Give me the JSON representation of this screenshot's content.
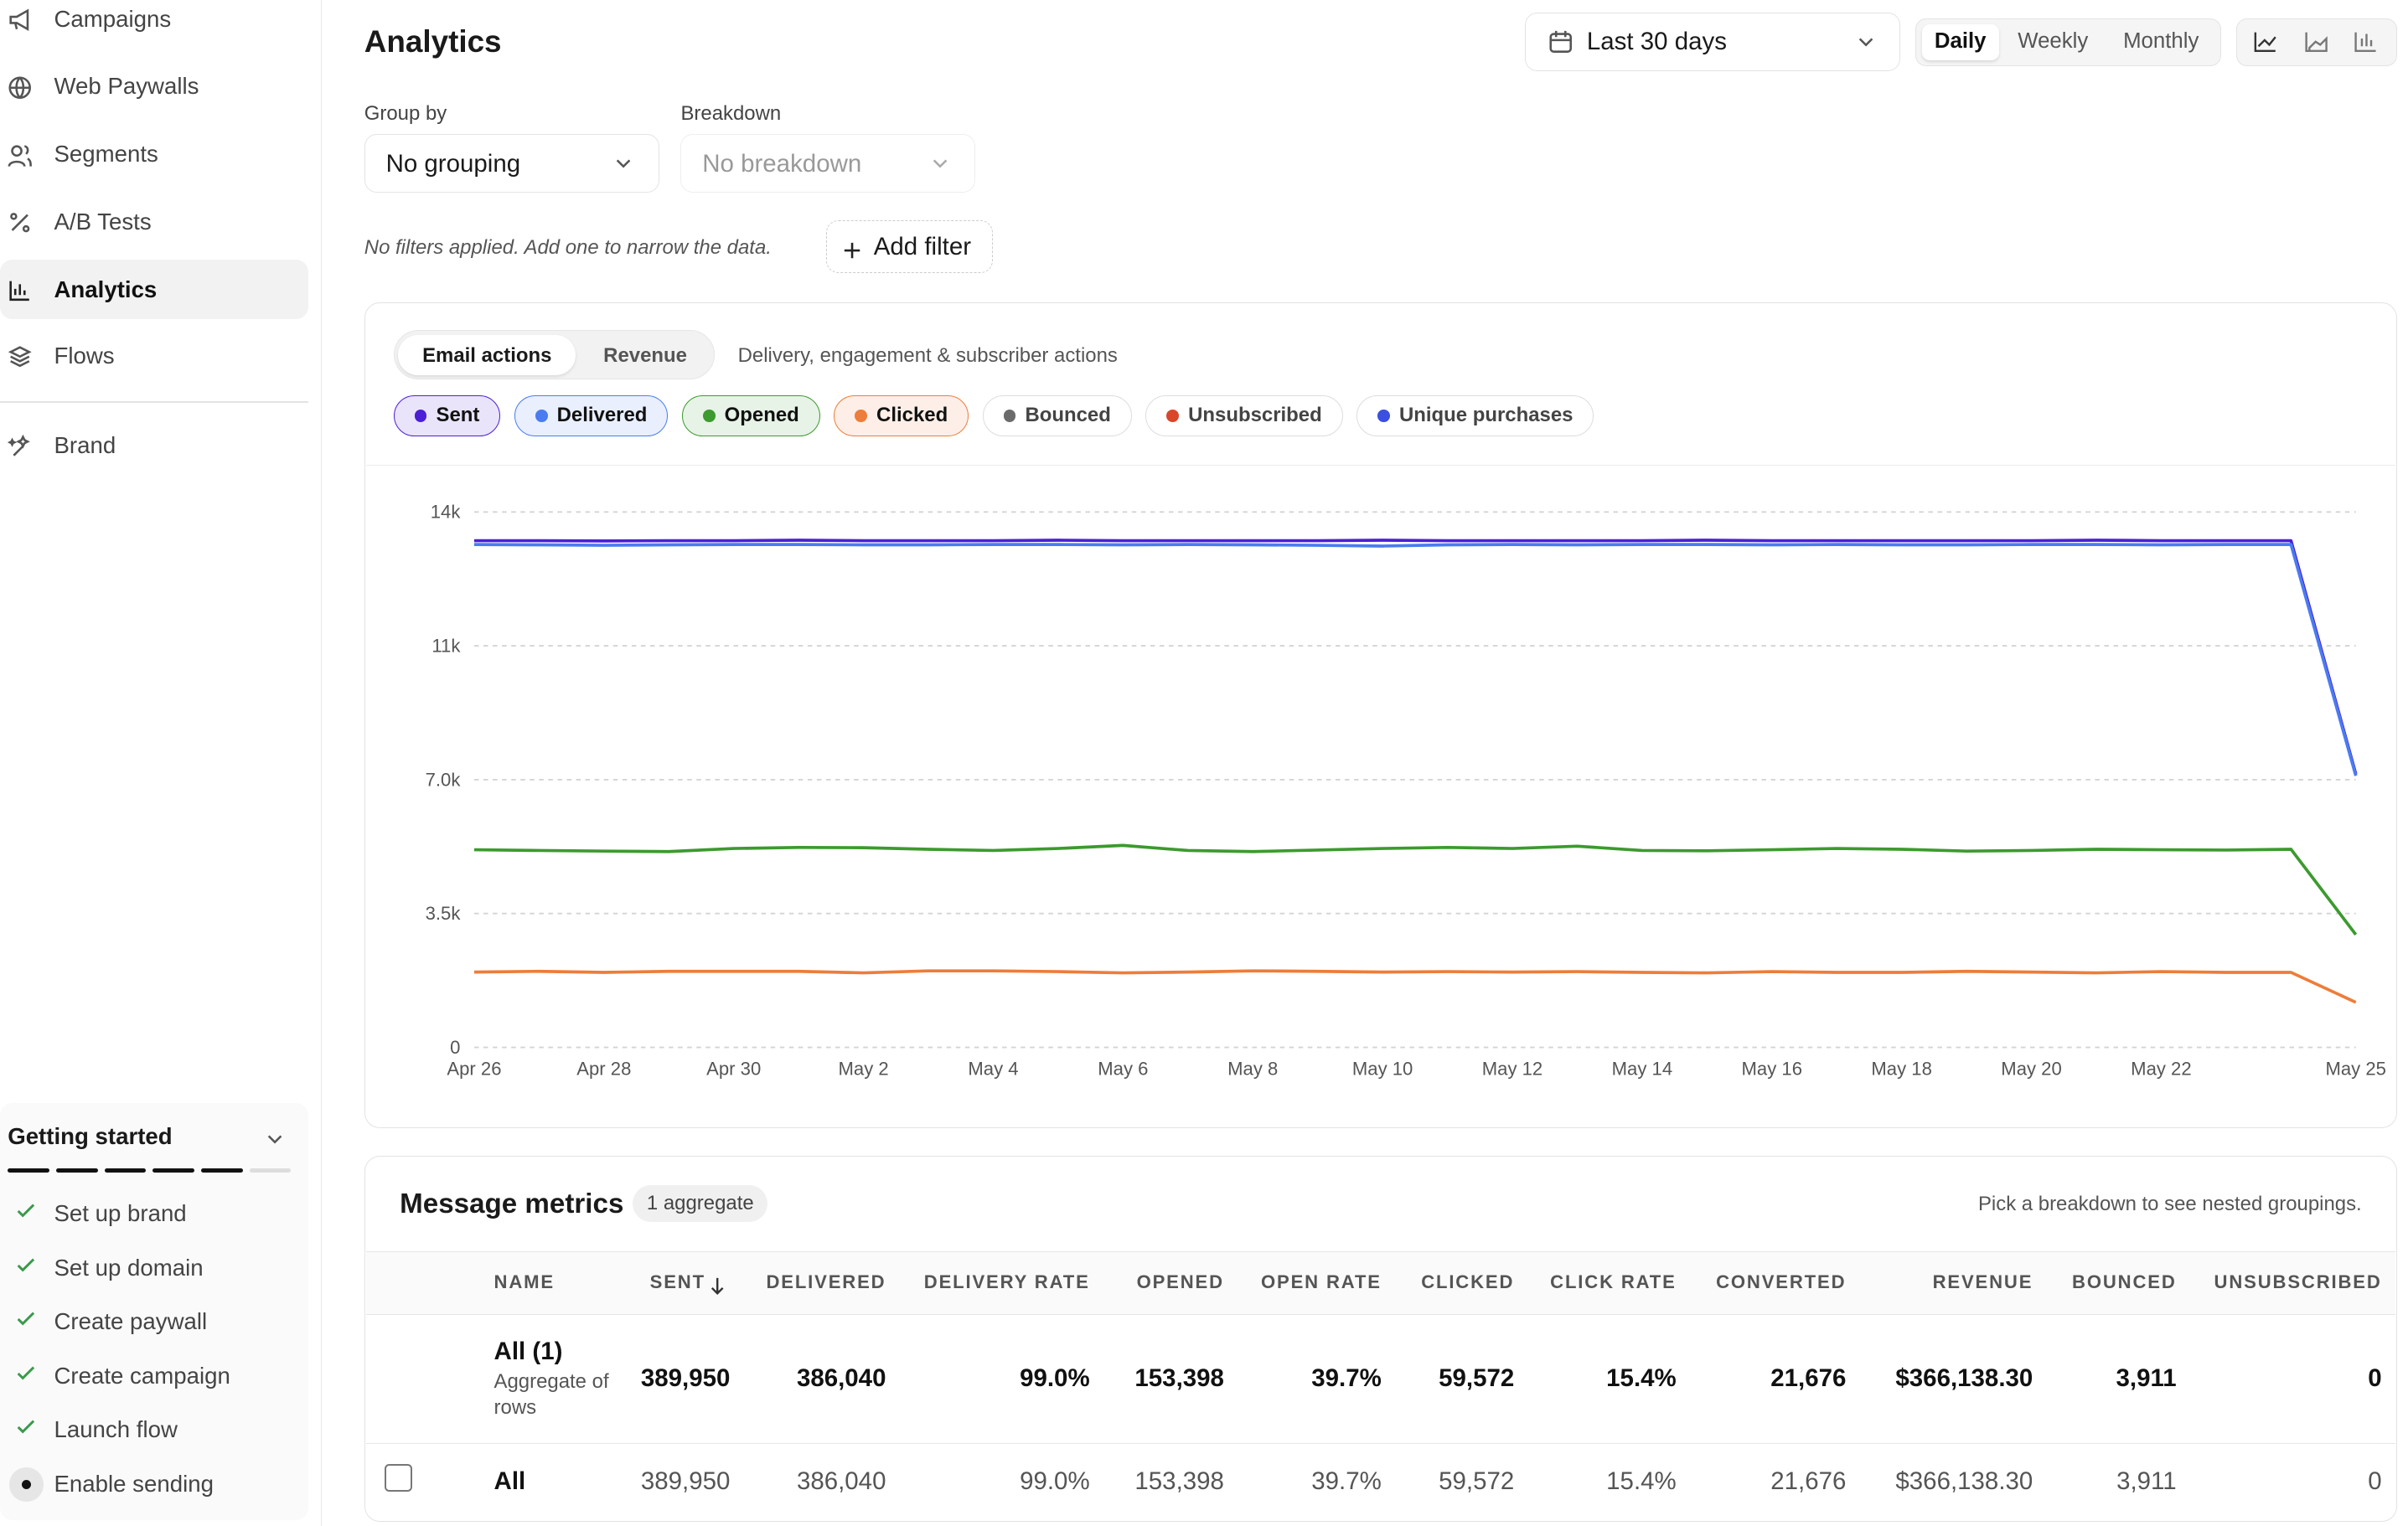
{
  "sidebar": {
    "nav": [
      "Campaigns",
      "Web Paywalls",
      "Segments",
      "A/B Tests",
      "Analytics",
      "Flows"
    ],
    "brand": "Brand",
    "getting_started": {
      "title": "Getting started",
      "steps": [
        "Set up brand",
        "Set up domain",
        "Create paywall",
        "Create campaign",
        "Launch flow",
        "Enable sending"
      ]
    }
  },
  "header": {
    "title": "Analytics",
    "date_range": "Last 30 days",
    "periods": [
      "Daily",
      "Weekly",
      "Monthly"
    ]
  },
  "filters": {
    "group_by_label": "Group by",
    "group_by": "No grouping",
    "breakdown_label": "Breakdown",
    "breakdown": "No breakdown",
    "note": "No filters applied. Add one to narrow the data.",
    "add_filter": "Add filter"
  },
  "chart_panel": {
    "tabs": [
      "Email actions",
      "Revenue"
    ],
    "description": "Delivery, engagement & subscriber actions",
    "inactive_series": [
      {
        "name": "Bounced",
        "color": "#6b6b6b"
      },
      {
        "name": "Unsubscribed",
        "color": "#d9472b"
      },
      {
        "name": "Unique purchases",
        "color": "#3b4fe0"
      }
    ]
  },
  "chart_data": {
    "type": "line",
    "categories": [
      "Apr 26",
      null,
      "Apr 28",
      null,
      "Apr 30",
      null,
      "May 2",
      null,
      "May 4",
      null,
      "May 6",
      null,
      "May 8",
      null,
      "May 10",
      null,
      "May 12",
      null,
      "May 14",
      null,
      "May 16",
      null,
      "May 18",
      null,
      "May 20",
      null,
      "May 22",
      null,
      null,
      "May 25"
    ],
    "ylim": [
      0,
      14000
    ],
    "yticks": [
      0,
      {
        "value": 3500,
        "label": "3.5k"
      },
      {
        "value": 7000,
        "label": "7.0k"
      },
      {
        "value": 10500,
        "label": "11k"
      },
      {
        "value": 14000,
        "label": "14k"
      }
    ],
    "grid": true,
    "series": [
      {
        "name": "Sent",
        "color": "#4b1fd6",
        "values": [
          13250,
          13250,
          13240,
          13250,
          13250,
          13260,
          13250,
          13250,
          13250,
          13260,
          13250,
          13250,
          13250,
          13250,
          13260,
          13250,
          13250,
          13250,
          13250,
          13260,
          13250,
          13250,
          13250,
          13250,
          13250,
          13260,
          13250,
          13250,
          13250,
          7150
        ]
      },
      {
        "name": "Delivered",
        "color": "#4a7cf0",
        "values": [
          13150,
          13140,
          13130,
          13140,
          13150,
          13150,
          13140,
          13140,
          13150,
          13150,
          13140,
          13150,
          13140,
          13130,
          13110,
          13140,
          13150,
          13140,
          13150,
          13150,
          13140,
          13150,
          13140,
          13140,
          13150,
          13150,
          13140,
          13150,
          13150,
          7100
        ]
      },
      {
        "name": "Opened",
        "color": "#3c9a2e",
        "values": [
          5170,
          5150,
          5130,
          5120,
          5200,
          5230,
          5220,
          5180,
          5150,
          5200,
          5280,
          5150,
          5120,
          5160,
          5200,
          5230,
          5200,
          5260,
          5150,
          5140,
          5170,
          5200,
          5180,
          5130,
          5150,
          5180,
          5170,
          5160,
          5180,
          2950
        ]
      },
      {
        "name": "Clicked",
        "color": "#ed7d3a",
        "values": [
          1970,
          1990,
          1960,
          1990,
          1990,
          1990,
          1950,
          2000,
          2000,
          1980,
          1950,
          1970,
          2000,
          1990,
          1970,
          1980,
          1970,
          1980,
          1960,
          1950,
          1980,
          1960,
          1960,
          1990,
          1970,
          1950,
          1980,
          1960,
          1960,
          1180
        ]
      }
    ]
  },
  "metrics": {
    "title": "Message metrics",
    "badge": "1 aggregate",
    "hint": "Pick a breakdown to see nested groupings.",
    "columns": [
      "NAME",
      "SENT",
      "DELIVERED",
      "DELIVERY RATE",
      "OPENED",
      "OPEN RATE",
      "CLICKED",
      "CLICK RATE",
      "CONVERTED",
      "REVENUE",
      "BOUNCED",
      "UNSUBSCRIBED"
    ],
    "aggregate_note": "Aggregate of rows",
    "rows": [
      [
        "All (1)",
        "389,950",
        "386,040",
        "99.0%",
        "153,398",
        "39.7%",
        "59,572",
        "15.4%",
        "21,676",
        "$366,138.30",
        "3,911",
        "0"
      ],
      [
        "All",
        "389,950",
        "386,040",
        "99.0%",
        "153,398",
        "39.7%",
        "59,572",
        "15.4%",
        "21,676",
        "$366,138.30",
        "3,911",
        "0"
      ]
    ]
  }
}
